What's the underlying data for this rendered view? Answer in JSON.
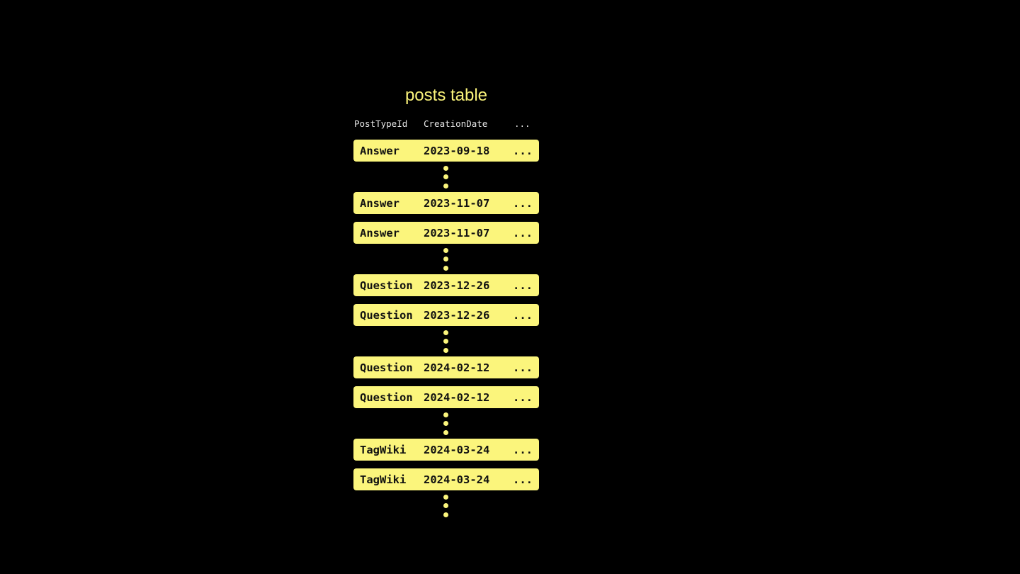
{
  "title": "posts table",
  "columns": [
    "PostTypeId",
    "CreationDate",
    "..."
  ],
  "accent_color": "#fbf57c",
  "groups": [
    {
      "rows": [
        [
          "Answer",
          "2023-09-18",
          "..."
        ]
      ]
    },
    {
      "rows": [
        [
          "Answer",
          "2023-11-07",
          "..."
        ],
        [
          "Answer",
          "2023-11-07",
          "..."
        ]
      ]
    },
    {
      "rows": [
        [
          "Question",
          "2023-12-26",
          "..."
        ],
        [
          "Question",
          "2023-12-26",
          "..."
        ]
      ]
    },
    {
      "rows": [
        [
          "Question",
          "2024-02-12",
          "..."
        ],
        [
          "Question",
          "2024-02-12",
          "..."
        ]
      ]
    },
    {
      "rows": [
        [
          "TagWiki",
          "2024-03-24",
          "..."
        ],
        [
          "TagWiki",
          "2024-03-24",
          "..."
        ]
      ]
    }
  ],
  "continuation_icon": "vertical-ellipsis"
}
